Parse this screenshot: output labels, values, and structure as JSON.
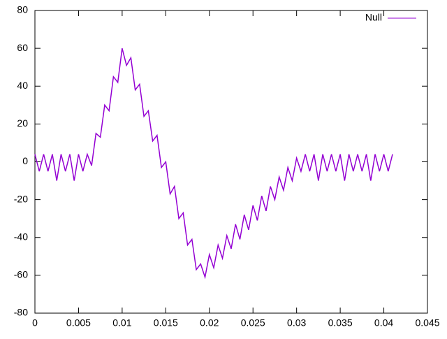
{
  "chart_data": {
    "type": "line",
    "x": [
      0,
      0.0005,
      0.001,
      0.0015,
      0.002,
      0.0025,
      0.003,
      0.0035,
      0.004,
      0.0045,
      0.005,
      0.0055,
      0.006,
      0.0065,
      0.007,
      0.0075,
      0.008,
      0.0085,
      0.009,
      0.0095,
      0.01,
      0.0105,
      0.011,
      0.0115,
      0.012,
      0.0125,
      0.013,
      0.0135,
      0.014,
      0.0145,
      0.015,
      0.0155,
      0.016,
      0.0165,
      0.017,
      0.0175,
      0.018,
      0.0185,
      0.019,
      0.0195,
      0.02,
      0.0205,
      0.021,
      0.0215,
      0.022,
      0.0225,
      0.023,
      0.0235,
      0.024,
      0.0245,
      0.025,
      0.0255,
      0.026,
      0.0265,
      0.027,
      0.0275,
      0.028,
      0.0285,
      0.029,
      0.0295,
      0.03,
      0.0305,
      0.031,
      0.0315,
      0.032,
      0.0325,
      0.033,
      0.0335,
      0.034,
      0.0345,
      0.035,
      0.0355,
      0.036,
      0.0365,
      0.037,
      0.0375,
      0.038,
      0.0385,
      0.039,
      0.0395,
      0.04,
      0.0405,
      0.041
    ],
    "series": [
      {
        "name": "Null",
        "color": "#9400d3",
        "values": [
          4,
          -5,
          4,
          -5,
          4,
          -10,
          4,
          -5,
          4,
          -10,
          4,
          -5,
          4,
          -2,
          15,
          13,
          30,
          27,
          45,
          42,
          60,
          51,
          55,
          38,
          41,
          24,
          27,
          11,
          14,
          -3,
          0,
          -17,
          -13,
          -30,
          -27,
          -44,
          -41,
          -57,
          -54,
          -61,
          -49,
          -56,
          -44,
          -51,
          -39,
          -46,
          -33,
          -41,
          -28,
          -36,
          -23,
          -31,
          -18,
          -26,
          -13,
          -20,
          -8,
          -15,
          -3,
          -10,
          2,
          -5,
          4,
          -5,
          4,
          -10,
          4,
          -5,
          4,
          -5,
          4,
          -10,
          4,
          -5,
          4,
          -5,
          4,
          -10,
          4,
          -5,
          4,
          -5,
          4
        ]
      }
    ],
    "xlim": [
      0,
      0.045
    ],
    "xticks": [
      0,
      0.005,
      0.01,
      0.015,
      0.02,
      0.025,
      0.03,
      0.035,
      0.04,
      0.045
    ],
    "ylim": [
      -80,
      80
    ],
    "yticks": [
      -80,
      -60,
      -40,
      -20,
      0,
      20,
      40,
      60,
      80
    ],
    "grid": false,
    "legend": "top-right"
  }
}
